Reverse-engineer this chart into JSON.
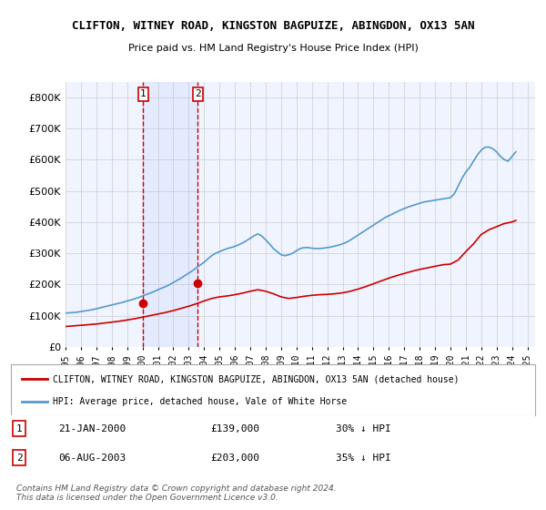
{
  "title1": "CLIFTON, WITNEY ROAD, KINGSTON BAGPUIZE, ABINGDON, OX13 5AN",
  "title2": "Price paid vs. HM Land Registry's House Price Index (HPI)",
  "legend_red": "CLIFTON, WITNEY ROAD, KINGSTON BAGPUIZE, ABINGDON, OX13 5AN (detached house)",
  "legend_blue": "HPI: Average price, detached house, Vale of White Horse",
  "transaction1_label": "1",
  "transaction1_date": "21-JAN-2000",
  "transaction1_price": "£139,000",
  "transaction1_hpi": "30% ↓ HPI",
  "transaction2_label": "2",
  "transaction2_date": "06-AUG-2003",
  "transaction2_price": "£203,000",
  "transaction2_hpi": "35% ↓ HPI",
  "footer": "Contains HM Land Registry data © Crown copyright and database right 2024.\nThis data is licensed under the Open Government Licence v3.0.",
  "ylim": [
    0,
    850000
  ],
  "yticks": [
    0,
    100000,
    200000,
    300000,
    400000,
    500000,
    600000,
    700000,
    800000
  ],
  "ytick_labels": [
    "£0",
    "£100K",
    "£200K",
    "£300K",
    "£400K",
    "£500K",
    "£600K",
    "£700K",
    "£800K"
  ],
  "xtick_years": [
    1995,
    1996,
    1997,
    1998,
    1999,
    2000,
    2001,
    2002,
    2003,
    2004,
    2005,
    2006,
    2007,
    2008,
    2009,
    2010,
    2011,
    2012,
    2013,
    2014,
    2015,
    2016,
    2017,
    2018,
    2019,
    2020,
    2021,
    2022,
    2023,
    2024,
    2025
  ],
  "background_color": "#f0f4ff",
  "plot_bg": "#f0f4ff",
  "grid_color": "#cccccc",
  "red_color": "#cc0000",
  "blue_color": "#5599cc",
  "vline1_x": 2000.05,
  "vline2_x": 2003.6,
  "marker1_x": 2000.05,
  "marker1_y": 139000,
  "marker2_x": 2003.6,
  "marker2_y": 203000,
  "hpi_start_year": 1995,
  "hpi_years": [
    1995,
    1995.25,
    1995.5,
    1995.75,
    1996,
    1996.25,
    1996.5,
    1996.75,
    1997,
    1997.25,
    1997.5,
    1997.75,
    1998,
    1998.25,
    1998.5,
    1998.75,
    1999,
    1999.25,
    1999.5,
    1999.75,
    2000,
    2000.25,
    2000.5,
    2000.75,
    2001,
    2001.25,
    2001.5,
    2001.75,
    2002,
    2002.25,
    2002.5,
    2002.75,
    2003,
    2003.25,
    2003.5,
    2003.75,
    2004,
    2004.25,
    2004.5,
    2004.75,
    2005,
    2005.25,
    2005.5,
    2005.75,
    2006,
    2006.25,
    2006.5,
    2006.75,
    2007,
    2007.25,
    2007.5,
    2007.75,
    2008,
    2008.25,
    2008.5,
    2008.75,
    2009,
    2009.25,
    2009.5,
    2009.75,
    2010,
    2010.25,
    2010.5,
    2010.75,
    2011,
    2011.25,
    2011.5,
    2011.75,
    2012,
    2012.25,
    2012.5,
    2012.75,
    2013,
    2013.25,
    2013.5,
    2013.75,
    2014,
    2014.25,
    2014.5,
    2014.75,
    2015,
    2015.25,
    2015.5,
    2015.75,
    2016,
    2016.25,
    2016.5,
    2016.75,
    2017,
    2017.25,
    2017.5,
    2017.75,
    2018,
    2018.25,
    2018.5,
    2018.75,
    2019,
    2019.25,
    2019.5,
    2019.75,
    2020,
    2020.25,
    2020.5,
    2020.75,
    2021,
    2021.25,
    2021.5,
    2021.75,
    2022,
    2022.25,
    2022.5,
    2022.75,
    2023,
    2023.25,
    2023.5,
    2023.75,
    2024,
    2024.25
  ],
  "hpi_values": [
    108000,
    109000,
    110000,
    111000,
    113000,
    115000,
    117000,
    119000,
    122000,
    125000,
    128000,
    131000,
    134000,
    137000,
    140000,
    143000,
    147000,
    150000,
    154000,
    158000,
    163000,
    168000,
    172000,
    177000,
    183000,
    188000,
    193000,
    199000,
    206000,
    213000,
    220000,
    228000,
    236000,
    244000,
    253000,
    262000,
    271000,
    282000,
    292000,
    300000,
    305000,
    310000,
    315000,
    318000,
    322000,
    327000,
    333000,
    340000,
    348000,
    356000,
    362000,
    355000,
    343000,
    330000,
    315000,
    305000,
    295000,
    292000,
    295000,
    300000,
    308000,
    315000,
    318000,
    318000,
    316000,
    315000,
    315000,
    316000,
    318000,
    320000,
    323000,
    326000,
    330000,
    335000,
    342000,
    350000,
    358000,
    366000,
    374000,
    382000,
    390000,
    398000,
    406000,
    414000,
    420000,
    426000,
    432000,
    438000,
    443000,
    448000,
    452000,
    456000,
    460000,
    464000,
    466000,
    468000,
    470000,
    472000,
    474000,
    476000,
    478000,
    490000,
    515000,
    540000,
    560000,
    575000,
    595000,
    615000,
    630000,
    640000,
    640000,
    635000,
    625000,
    610000,
    600000,
    595000,
    610000,
    625000
  ],
  "pp_years": [
    1995,
    1995.5,
    1996,
    1996.5,
    1997,
    1997.5,
    1998,
    1998.5,
    1999,
    1999.5,
    2000,
    2000.5,
    2001,
    2001.5,
    2002,
    2002.5,
    2003,
    2003.5,
    2004,
    2004.5,
    2005,
    2005.5,
    2006,
    2006.5,
    2007,
    2007.5,
    2008,
    2008.5,
    2009,
    2009.5,
    2010,
    2010.5,
    2011,
    2011.5,
    2012,
    2012.5,
    2013,
    2013.5,
    2014,
    2014.5,
    2015,
    2015.5,
    2016,
    2016.5,
    2017,
    2017.5,
    2018,
    2018.5,
    2019,
    2019.5,
    2020,
    2020.5,
    2021,
    2021.5,
    2022,
    2022.5,
    2023,
    2023.5,
    2024,
    2024.25
  ],
  "pp_values": [
    65000,
    67000,
    69000,
    71000,
    73000,
    76000,
    79000,
    82000,
    86000,
    90000,
    95000,
    100000,
    105000,
    110000,
    116000,
    123000,
    130000,
    138000,
    147000,
    155000,
    160000,
    163000,
    167000,
    172000,
    178000,
    183000,
    178000,
    170000,
    160000,
    155000,
    158000,
    162000,
    165000,
    167000,
    168000,
    170000,
    173000,
    178000,
    185000,
    193000,
    202000,
    211000,
    220000,
    228000,
    235000,
    242000,
    248000,
    253000,
    258000,
    263000,
    265000,
    278000,
    305000,
    330000,
    360000,
    375000,
    385000,
    395000,
    400000,
    405000
  ]
}
